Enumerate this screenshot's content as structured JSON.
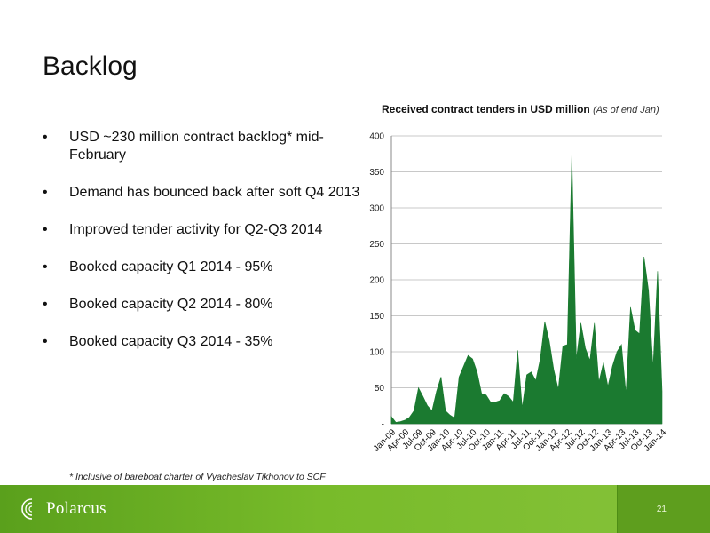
{
  "slide": {
    "title": "Backlog",
    "page_number": "21",
    "footnote": "* Inclusive of bareboat charter of Vyacheslav Tikhonov to SCF",
    "logo_text": "Polarcus"
  },
  "bullets": [
    "USD ~230 million contract backlog* mid-February",
    "Demand has bounced back after soft Q4 2013",
    "Improved tender activity for Q2-Q3 2014",
    "Booked capacity Q1 2014 - 95%",
    "Booked capacity Q2 2014 - 80%",
    "Booked capacity Q3 2014 - 35%"
  ],
  "colors": {
    "area_fill": "#1b7a30",
    "footer_green": "#78bb2a"
  },
  "chart_data": {
    "type": "area",
    "title": "Received contract tenders in USD million",
    "subtitle": "(As of end Jan)",
    "xlabel": "",
    "ylabel": "",
    "ylim": [
      0,
      400
    ],
    "yticks": [
      0,
      50,
      100,
      150,
      200,
      250,
      300,
      350,
      400
    ],
    "ytick_labels": [
      "-",
      "50",
      "100",
      "150",
      "200",
      "250",
      "300",
      "350",
      "400"
    ],
    "grid": true,
    "x_tick_labels": [
      "Jan-09",
      "Apr-09",
      "Jul-09",
      "Oct-09",
      "Jan-10",
      "Apr-10",
      "Jul-10",
      "Oct-10",
      "Jan-11",
      "Apr-11",
      "Jul-11",
      "Oct-11",
      "Jan-12",
      "Apr-12",
      "Jul-12",
      "Oct-12",
      "Jan-13",
      "Apr-13",
      "Jul-13",
      "Oct-13",
      "Jan-14"
    ],
    "x": [
      "Jan-09",
      "Feb-09",
      "Mar-09",
      "Apr-09",
      "May-09",
      "Jun-09",
      "Jul-09",
      "Aug-09",
      "Sep-09",
      "Oct-09",
      "Nov-09",
      "Dec-09",
      "Jan-10",
      "Feb-10",
      "Mar-10",
      "Apr-10",
      "May-10",
      "Jun-10",
      "Jul-10",
      "Aug-10",
      "Sep-10",
      "Oct-10",
      "Nov-10",
      "Dec-10",
      "Jan-11",
      "Feb-11",
      "Mar-11",
      "Apr-11",
      "May-11",
      "Jun-11",
      "Jul-11",
      "Aug-11",
      "Sep-11",
      "Oct-11",
      "Nov-11",
      "Dec-11",
      "Jan-12",
      "Feb-12",
      "Mar-12",
      "Apr-12",
      "May-12",
      "Jun-12",
      "Jul-12",
      "Aug-12",
      "Sep-12",
      "Oct-12",
      "Nov-12",
      "Dec-12",
      "Jan-13",
      "Feb-13",
      "Mar-13",
      "Apr-13",
      "May-13",
      "Jun-13",
      "Jul-13",
      "Aug-13",
      "Sep-13",
      "Oct-13",
      "Nov-13",
      "Dec-13",
      "Jan-14"
    ],
    "series": [
      {
        "values": [
          10,
          2,
          3,
          5,
          9,
          18,
          50,
          38,
          25,
          18,
          45,
          65,
          18,
          12,
          8,
          65,
          80,
          95,
          90,
          72,
          42,
          40,
          30,
          30,
          32,
          42,
          38,
          30,
          102,
          22,
          68,
          72,
          60,
          90,
          142,
          115,
          75,
          48,
          108,
          110,
          375,
          90,
          140,
          105,
          88,
          140,
          58,
          85,
          52,
          80,
          100,
          110,
          42,
          162,
          130,
          125,
          232,
          185,
          78,
          212,
          45
        ]
      }
    ]
  }
}
